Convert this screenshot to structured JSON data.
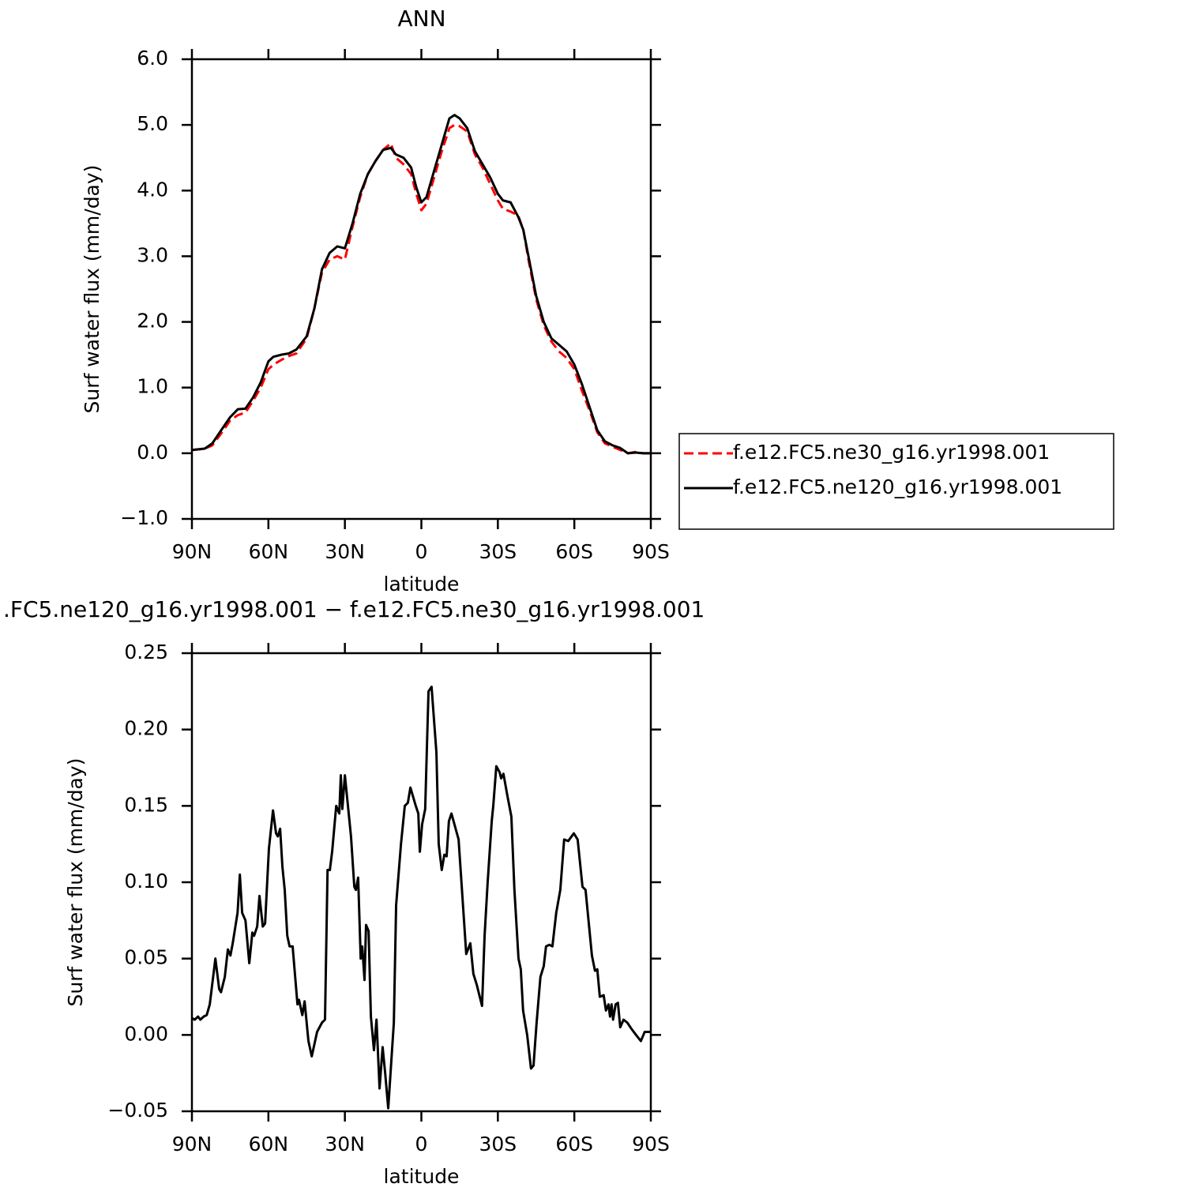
{
  "chart_data": [
    {
      "type": "line",
      "title": "ANN",
      "xlabel": "latitude",
      "ylabel": "Surf water flux (mm/day)",
      "xlim": [
        90,
        -90
      ],
      "xticks": [
        {
          "value": 90,
          "label": "90N"
        },
        {
          "value": 60,
          "label": "60N"
        },
        {
          "value": 30,
          "label": "30N"
        },
        0,
        {
          "value": -30,
          "label": "30S"
        },
        {
          "value": -60,
          "label": "60S"
        },
        {
          "value": -90,
          "label": "90S"
        }
      ],
      "ylim": [
        -1,
        6
      ],
      "yticks": [
        {
          "value": -1,
          "label": "−1.0"
        },
        {
          "value": 0,
          "label": "0.0"
        },
        {
          "value": 1,
          "label": "1.0"
        },
        {
          "value": 2,
          "label": "2.0"
        },
        {
          "value": 3,
          "label": "3.0"
        },
        {
          "value": 4,
          "label": "4.0"
        },
        {
          "value": 5,
          "label": "5.0"
        },
        {
          "value": 6,
          "label": "6.0"
        }
      ],
      "legend": "right",
      "x": [
        90,
        85,
        82,
        78,
        75,
        72,
        69,
        66,
        63,
        60,
        58,
        55,
        52,
        49,
        45,
        42,
        39,
        36,
        33,
        30,
        27,
        24,
        21,
        18,
        15,
        12,
        10,
        7,
        4,
        2,
        0,
        -2,
        -5,
        -8,
        -11,
        -13,
        -15,
        -18,
        -21,
        -24,
        -27,
        -30,
        -32,
        -35,
        -38,
        -40,
        -42,
        -45,
        -48,
        -51,
        -54,
        -57,
        -60,
        -63,
        -66,
        -69,
        -72,
        -75,
        -78,
        -81,
        -84,
        -87,
        -90
      ],
      "series": [
        {
          "name": "f.e12.FC5.ne30_g16.yr1998.001",
          "color": "#ff0000",
          "linestyle": "dashed",
          "values": [
            0.05,
            0.07,
            0.12,
            0.33,
            0.5,
            0.58,
            0.62,
            0.8,
            1.0,
            1.28,
            1.35,
            1.42,
            1.48,
            1.52,
            1.75,
            2.2,
            2.75,
            2.95,
            3.0,
            2.95,
            3.45,
            3.9,
            4.25,
            4.45,
            4.62,
            4.72,
            4.5,
            4.4,
            4.25,
            3.95,
            3.7,
            3.8,
            4.2,
            4.6,
            4.95,
            5.0,
            4.98,
            4.9,
            4.55,
            4.35,
            4.1,
            3.85,
            3.72,
            3.68,
            3.62,
            3.4,
            2.95,
            2.35,
            1.95,
            1.7,
            1.55,
            1.45,
            1.28,
            0.95,
            0.65,
            0.32,
            0.15,
            0.1,
            0.05,
            0.0,
            0.02,
            0.0,
            0.0
          ]
        },
        {
          "name": "f.e12.FC5.ne120_g16.yr1998.001",
          "color": "#000000",
          "linestyle": "solid",
          "values": [
            0.05,
            0.07,
            0.15,
            0.38,
            0.55,
            0.67,
            0.68,
            0.85,
            1.08,
            1.4,
            1.47,
            1.5,
            1.52,
            1.58,
            1.78,
            2.2,
            2.8,
            3.05,
            3.15,
            3.12,
            3.5,
            3.95,
            4.25,
            4.45,
            4.62,
            4.65,
            4.55,
            4.5,
            4.35,
            4.05,
            3.82,
            3.9,
            4.3,
            4.7,
            5.1,
            5.15,
            5.1,
            4.95,
            4.6,
            4.4,
            4.2,
            3.95,
            3.85,
            3.82,
            3.6,
            3.4,
            3.0,
            2.4,
            2.0,
            1.75,
            1.65,
            1.55,
            1.35,
            1.05,
            0.7,
            0.35,
            0.18,
            0.12,
            0.08,
            0.0,
            0.01,
            0.0,
            0.0
          ]
        }
      ]
    },
    {
      "type": "line",
      "title": ".FC5.ne120_g16.yr1998.001 − f.e12.FC5.ne30_g16.yr1998.001",
      "xlabel": "latitude",
      "ylabel": "Surf water flux (mm/day)",
      "xlim": [
        90,
        -90
      ],
      "xticks": [
        {
          "value": 90,
          "label": "90N"
        },
        {
          "value": 60,
          "label": "60N"
        },
        {
          "value": 30,
          "label": "30N"
        },
        0,
        {
          "value": -30,
          "label": "30S"
        },
        {
          "value": -60,
          "label": "60S"
        },
        {
          "value": -90,
          "label": "90S"
        }
      ],
      "ylim": [
        -0.05,
        0.25
      ],
      "yticks": [
        {
          "value": -0.05,
          "label": "−0.05"
        },
        {
          "value": 0,
          "label": "0.00"
        },
        0.05,
        {
          "value": 0.1,
          "label": "0.10"
        },
        0.15,
        {
          "value": 0.2,
          "label": "0.20"
        },
        0.25
      ],
      "x": [
        90,
        88.9,
        87.6,
        86.7,
        85.4,
        84.2,
        83.0,
        80.8,
        79.3,
        78.6,
        77.1,
        75.9,
        74.9,
        74.0,
        72.1,
        71.2,
        70.3,
        69.0,
        67.5,
        66.3,
        65.6,
        64.4,
        63.5,
        62.2,
        61.3,
        59.8,
        58.2,
        57.0,
        56.3,
        55.4,
        54.5,
        53.6,
        52.6,
        51.7,
        50.5,
        48.6,
        48.0,
        46.7,
        45.8,
        44.3,
        43.0,
        40.9,
        39.0,
        37.8,
        36.8,
        35.9,
        35.0,
        33.4,
        32.2,
        31.6,
        31.0,
        30.0,
        27.6,
        26.3,
        25.7,
        24.8,
        23.8,
        23.2,
        22.3,
        21.7,
        20.7,
        19.8,
        18.6,
        17.6,
        16.4,
        15.2,
        14.2,
        13.0,
        10.8,
        9.9,
        8.0,
        6.5,
        5.3,
        4.3,
        2.2,
        1.2,
        0.6,
        -0.3,
        -1.5,
        -2.2,
        -2.8,
        -4.0,
        -5.9,
        -6.8,
        -8.0,
        -9.0,
        -9.9,
        -10.8,
        -11.8,
        -14.6,
        -15.8,
        -17.6,
        -19.2,
        -20.4,
        -21.7,
        -22.9,
        -23.8,
        -24.8,
        -26.0,
        -27.6,
        -28.2,
        -29.4,
        -30.7,
        -31.3,
        -32.2,
        -33.7,
        -35.3,
        -36.5,
        -38.1,
        -39.0,
        -39.9,
        -41.5,
        -43.0,
        -44.0,
        -45.2,
        -46.7,
        -48.0,
        -48.9,
        -50.2,
        -51.4,
        -52.9,
        -54.5,
        -56.0,
        -57.6,
        -59.8,
        -61.3,
        -63.2,
        -64.4,
        -66.9,
        -68.1,
        -69.0,
        -70.0,
        -71.5,
        -72.4,
        -73.4,
        -74.0,
        -74.6,
        -75.2,
        -76.2,
        -77.1,
        -78.0,
        -79.3,
        -80.8,
        -82.4,
        -84.2,
        -86.1,
        -87.6,
        -90
      ],
      "series": [
        {
          "color": "#000000",
          "linestyle": "solid",
          "values": [
            0.011,
            0.01,
            0.012,
            0.01,
            0.012,
            0.013,
            0.02,
            0.05,
            0.03,
            0.028,
            0.038,
            0.056,
            0.052,
            0.06,
            0.08,
            0.105,
            0.08,
            0.075,
            0.047,
            0.067,
            0.065,
            0.071,
            0.091,
            0.071,
            0.073,
            0.122,
            0.147,
            0.132,
            0.13,
            0.135,
            0.11,
            0.095,
            0.065,
            0.058,
            0.058,
            0.02,
            0.023,
            0.013,
            0.022,
            -0.004,
            -0.014,
            0.002,
            0.008,
            0.01,
            0.108,
            0.108,
            0.12,
            0.15,
            0.145,
            0.17,
            0.148,
            0.17,
            0.13,
            0.097,
            0.095,
            0.103,
            0.05,
            0.058,
            0.036,
            0.072,
            0.068,
            0.012,
            -0.01,
            0.01,
            -0.035,
            -0.008,
            -0.025,
            -0.048,
            0.008,
            0.085,
            0.125,
            0.15,
            0.152,
            0.162,
            0.15,
            0.145,
            0.12,
            0.138,
            0.148,
            0.19,
            0.225,
            0.228,
            0.185,
            0.125,
            0.108,
            0.118,
            0.117,
            0.14,
            0.145,
            0.128,
            0.098,
            0.053,
            0.06,
            0.04,
            0.033,
            0.025,
            0.019,
            0.065,
            0.1,
            0.14,
            0.15,
            0.176,
            0.172,
            0.168,
            0.171,
            0.157,
            0.143,
            0.095,
            0.05,
            0.043,
            0.016,
            0.0,
            -0.022,
            -0.02,
            0.008,
            0.038,
            0.045,
            0.058,
            0.059,
            0.058,
            0.08,
            0.095,
            0.128,
            0.127,
            0.132,
            0.128,
            0.097,
            0.095,
            0.052,
            0.042,
            0.043,
            0.025,
            0.026,
            0.016,
            0.02,
            0.012,
            0.02,
            0.01,
            0.02,
            0.021,
            0.005,
            0.01,
            0.008,
            0.004,
            0.0,
            -0.004,
            0.002,
            0.002
          ]
        }
      ]
    }
  ]
}
